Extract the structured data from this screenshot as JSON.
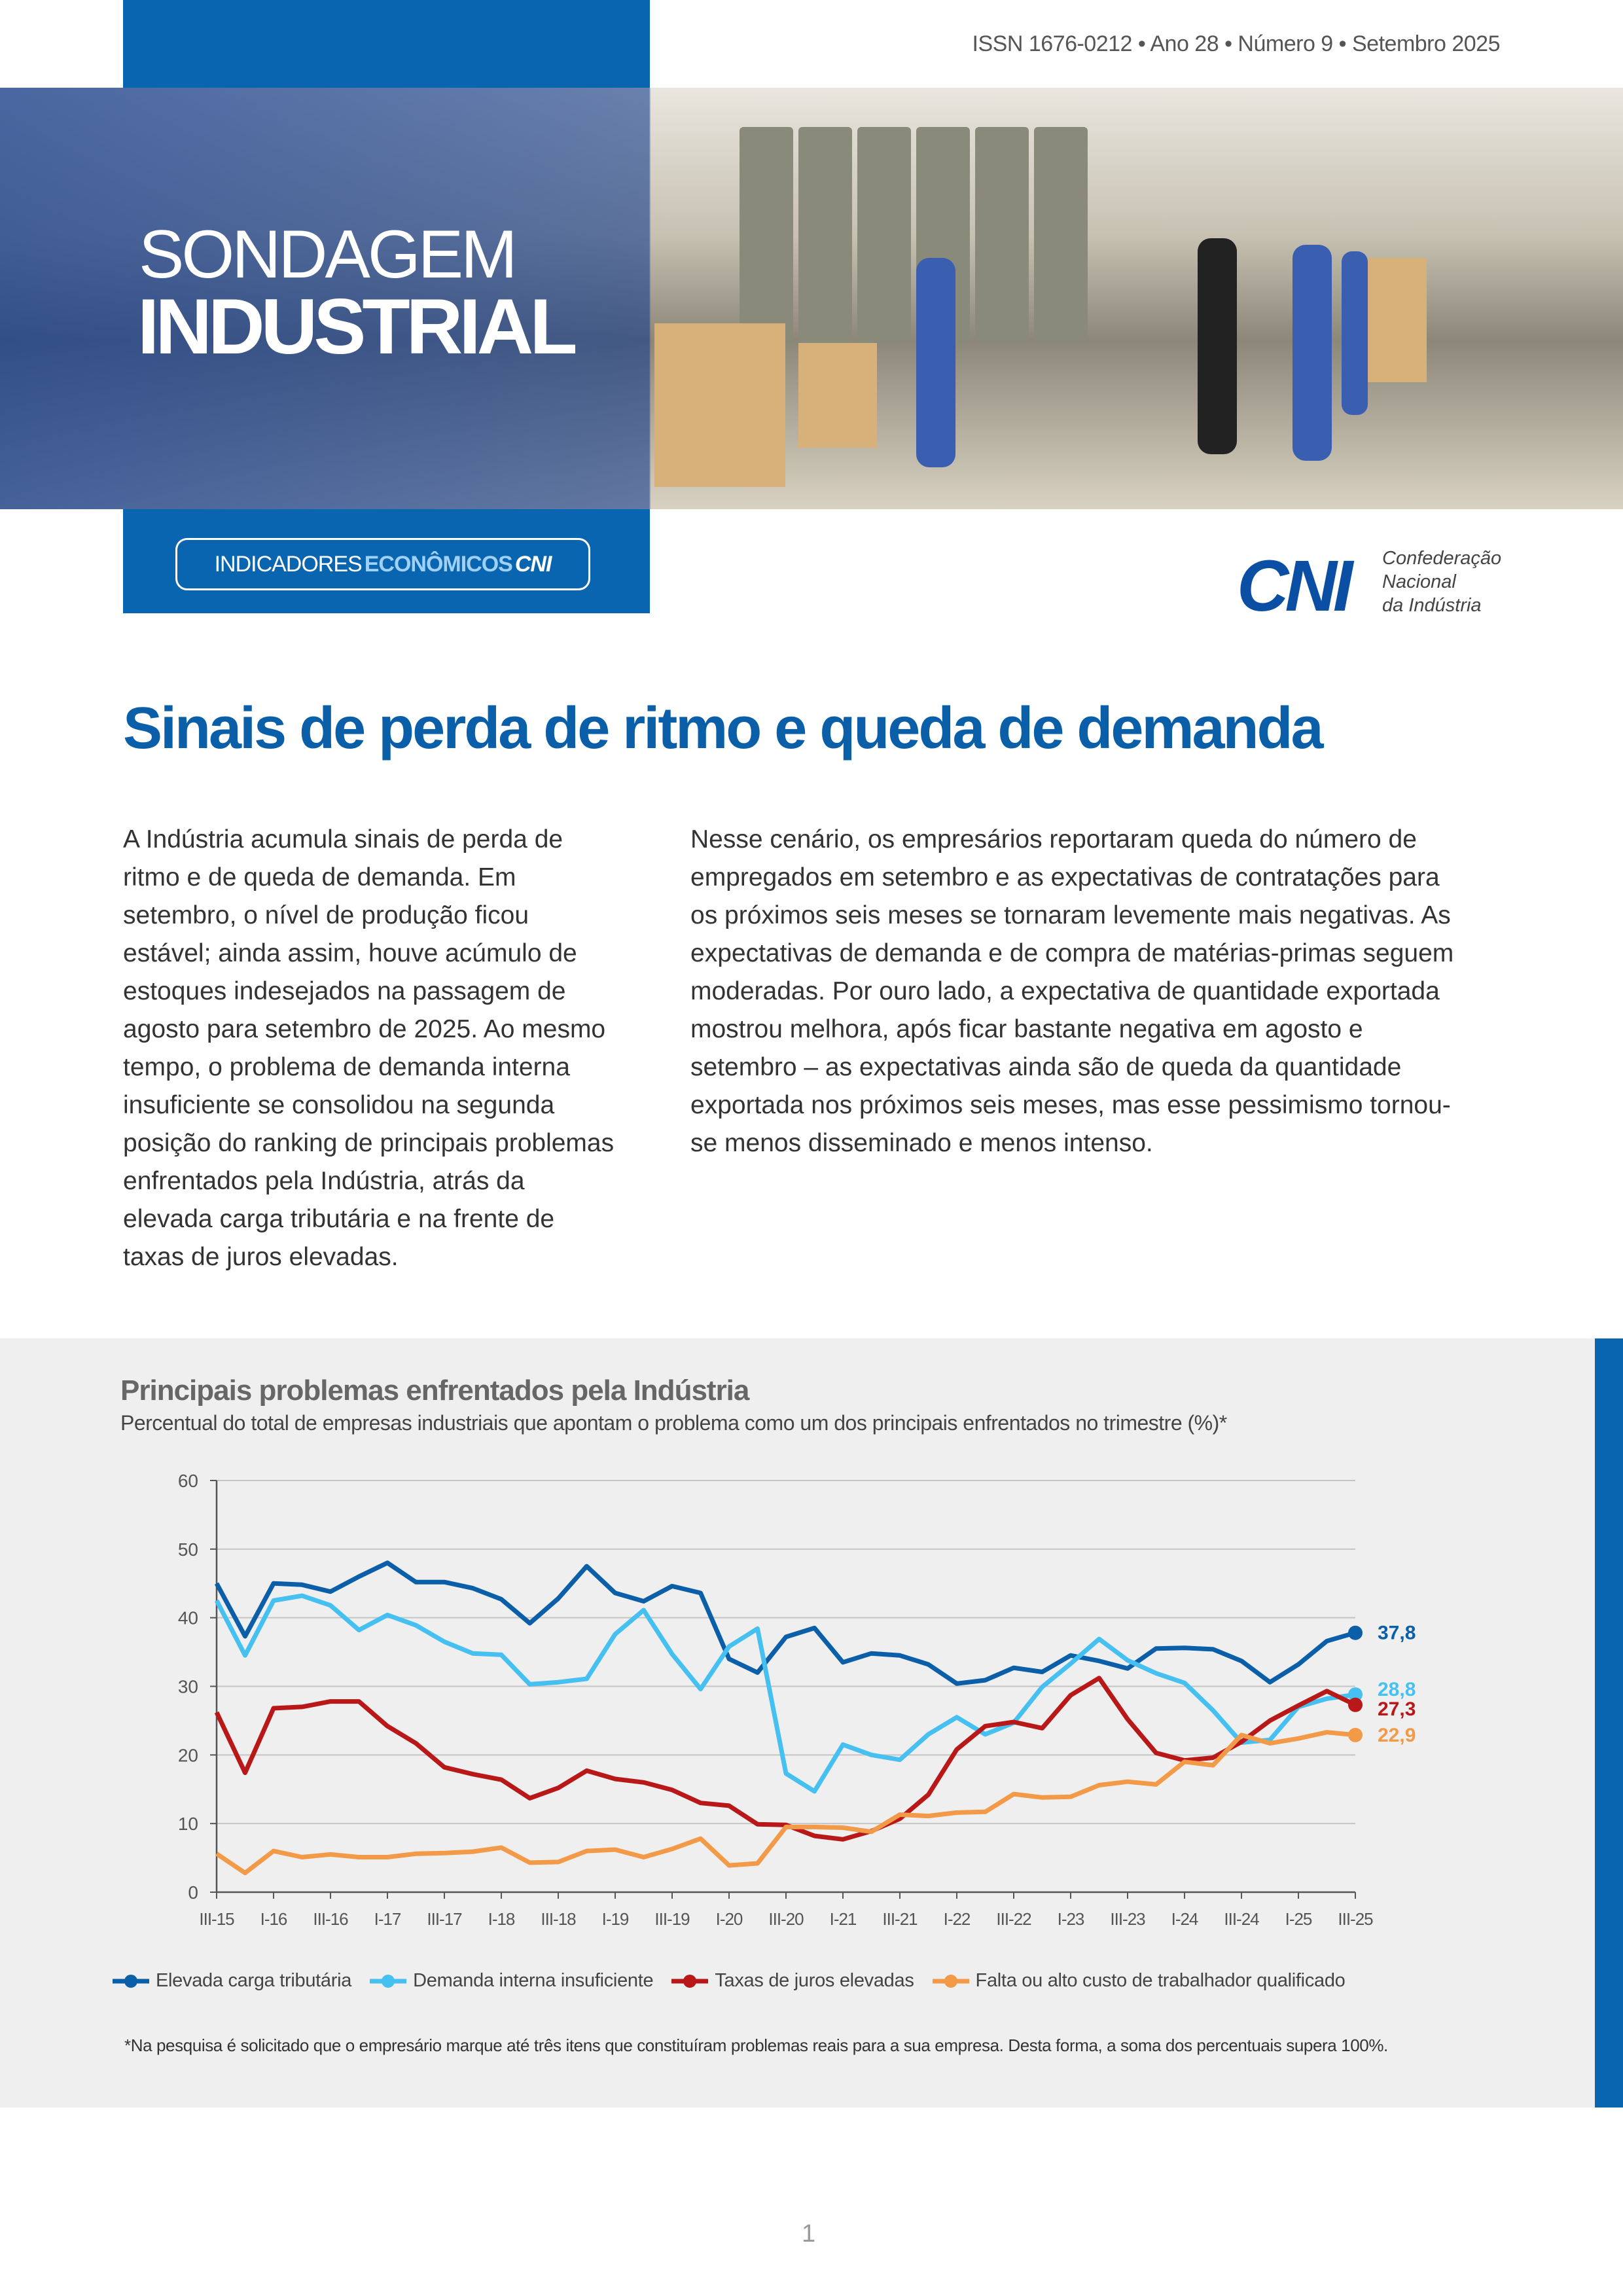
{
  "header": {
    "issn_line": "ISSN 1676-0212 • Ano 28 • Número 9 • Setembro 2025",
    "publication_title_line1": "SONDAGEM",
    "publication_title_line2": "INDUSTRIAL",
    "series_label_light": "INDICADORES",
    "series_label_bold": "ECONÔMICOS",
    "series_label_logo": "CNI",
    "logo_text": "CNI",
    "org_name": [
      "Confederação",
      "Nacional",
      "da Indústria"
    ],
    "brand_color": "#0a65b0"
  },
  "article": {
    "title": "Sinais de perda de ritmo e queda de demanda",
    "paragraph_left": "A Indústria acumula sinais de perda de ritmo e de queda de demanda. Em setembro, o nível de produção ficou estável; ainda assim, houve acúmulo de estoques indesejados na passagem de agosto para setembro de 2025. Ao mesmo tempo, o problema de demanda interna insuficiente se consolidou na segunda posição do ranking de principais problemas enfrentados pela Indústria, atrás da elevada carga tributária e na frente de taxas de juros elevadas.",
    "paragraph_right": "Nesse cenário, os empresários reportaram queda do número de empregados em setembro e as expectativas de contratações para os próximos seis meses se tornaram levemente mais negativas. As expectativas de demanda e de compra de matérias-primas seguem moderadas. Por ouro lado, a expectativa de quantidade exportada mostrou melhora, após ficar bastante negativa em agosto e setembro – as expectativas ainda são de queda da quantidade exportada nos próximos seis meses, mas esse pessimismo tornou-se menos disseminado e menos intenso."
  },
  "chart_data": {
    "type": "line",
    "title": "Principais problemas enfrentados pela Indústria",
    "subtitle": "Percentual do total de empresas industriais que apontam o problema como um dos principais enfrentados no trimestre (%)*",
    "x": [
      "III-15",
      "IV-15",
      "I-16",
      "II-16",
      "III-16",
      "IV-16",
      "I-17",
      "II-17",
      "III-17",
      "IV-17",
      "I-18",
      "II-18",
      "III-18",
      "IV-18",
      "I-19",
      "II-19",
      "III-19",
      "IV-19",
      "I-20",
      "II-20",
      "III-20",
      "IV-20",
      "I-21",
      "II-21",
      "III-21",
      "IV-21",
      "I-22",
      "II-22",
      "III-22",
      "IV-22",
      "I-23",
      "II-23",
      "III-23",
      "IV-23",
      "I-24",
      "II-24",
      "III-24",
      "IV-24",
      "I-25",
      "II-25",
      "III-25"
    ],
    "x_tick_labels": [
      "III-15",
      "I-16",
      "III-16",
      "I-17",
      "III-17",
      "I-18",
      "III-18",
      "I-19",
      "III-19",
      "I-20",
      "III-20",
      "I-21",
      "III-21",
      "I-22",
      "III-22",
      "I-23",
      "III-23",
      "I-24",
      "III-24",
      "I-25",
      "III-25"
    ],
    "ylim": [
      0,
      60
    ],
    "y_ticks": [
      0,
      10,
      20,
      30,
      40,
      50,
      60
    ],
    "grid": "horizontal",
    "legend": "bottom",
    "series": [
      {
        "name": "Elevada carga tributária",
        "color": "#0a5fa8",
        "end_label": "37,8",
        "values": [
          45,
          37.3,
          45,
          44.8,
          43.8,
          46,
          48,
          45.2,
          45.2,
          44.3,
          42.7,
          39.2,
          42.8,
          47.5,
          43.6,
          42.4,
          44.6,
          43.6,
          34,
          32,
          37.2,
          38.5,
          33.5,
          34.8,
          34.5,
          33.2,
          30.4,
          30.9,
          32.7,
          32.1,
          34.5,
          33.7,
          32.6,
          35.5,
          35.6,
          35.4,
          33.7,
          30.6,
          33.2,
          36.6,
          37.8
        ]
      },
      {
        "name": "Demanda interna insuficiente",
        "color": "#45c0f0",
        "end_label": "28,8",
        "values": [
          42.5,
          34.5,
          42.5,
          43.2,
          41.8,
          38.2,
          40.4,
          38.9,
          36.5,
          34.8,
          34.6,
          30.3,
          30.6,
          31.1,
          37.6,
          41.1,
          34.7,
          29.6,
          35.8,
          38.4,
          17.3,
          14.7,
          21.5,
          20,
          19.3,
          23,
          25.5,
          23,
          24.7,
          29.9,
          33.3,
          36.9,
          33.8,
          31.9,
          30.5,
          26.5,
          21.8,
          22.2,
          27,
          28.2,
          28.8
        ]
      },
      {
        "name": "Taxas de juros elevadas",
        "color": "#b81818",
        "end_label": "27,3",
        "values": [
          26.2,
          17.4,
          26.8,
          27,
          27.8,
          27.8,
          24.2,
          21.7,
          18.2,
          17.2,
          16.4,
          13.7,
          15.2,
          17.7,
          16.5,
          16,
          14.9,
          13,
          12.6,
          9.9,
          9.8,
          8.2,
          7.7,
          8.9,
          10.7,
          14.2,
          20.8,
          24.2,
          24.8,
          23.9,
          28.7,
          31.2,
          25.2,
          20.3,
          19.2,
          19.6,
          21.9,
          25,
          27.2,
          29.3,
          27.3
        ]
      },
      {
        "name": "Falta ou alto custo de trabalhador qualificado",
        "color": "#f39a48",
        "end_label": "22,9",
        "values": [
          5.6,
          2.8,
          6,
          5.1,
          5.5,
          5.1,
          5.1,
          5.6,
          5.7,
          5.9,
          6.5,
          4.3,
          4.4,
          6,
          6.2,
          5.1,
          6.3,
          7.8,
          3.9,
          4.2,
          9.5,
          9.5,
          9.4,
          8.8,
          11.3,
          11.1,
          11.6,
          11.7,
          14.3,
          13.8,
          13.9,
          15.6,
          16.1,
          15.7,
          19,
          18.5,
          22.9,
          21.7,
          22.4,
          23.3,
          22.9
        ]
      }
    ],
    "footnote": "*Na pesquisa é solicitado que o empresário marque até três itens que constituíram problemas reais para a sua empresa. Desta forma, a soma dos percentuais supera 100%."
  },
  "footer": {
    "page_number": "1"
  }
}
